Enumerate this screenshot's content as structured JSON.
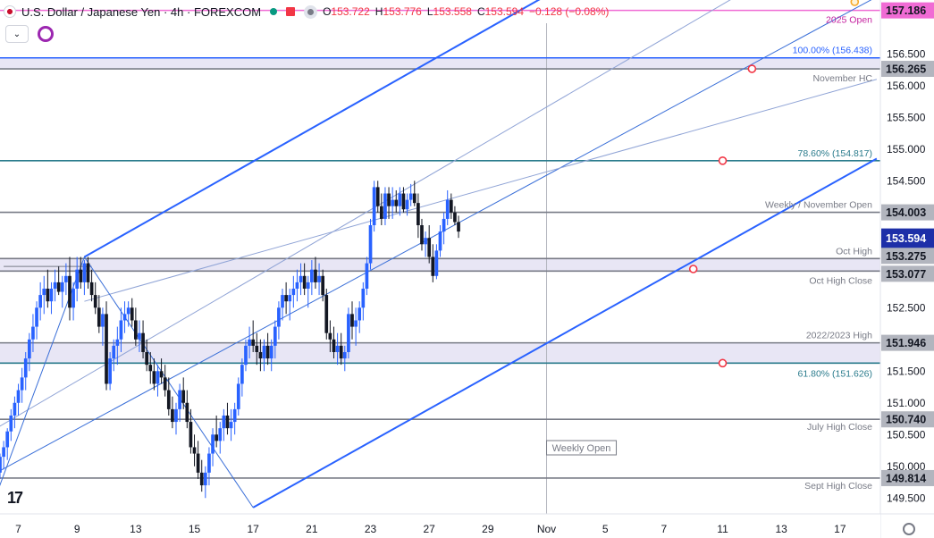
{
  "header": {
    "title": "U.S. Dollar / Japanese Yen · 4h · FOREXCOM",
    "ohlc": [
      {
        "k": "O",
        "v": "153.722"
      },
      {
        "k": "H",
        "v": "153.776"
      },
      {
        "k": "L",
        "v": "153.558"
      },
      {
        "k": "C",
        "v": "153.594"
      },
      {
        "k": "",
        "v": "−0.128 (−0.08%)"
      }
    ]
  },
  "colors": {
    "up": "#2962ff",
    "down": "#131722",
    "channel": "#2962ff",
    "channel_light": "#90a4d6",
    "zone": "#e8e6f5",
    "hline": "#787b86",
    "fib": "#2a7b8c",
    "pink": "#f06bd4",
    "marker": "#f23645",
    "label_bg": "#b2b5be",
    "orange": "#f7a928"
  },
  "chart_data": {
    "type": "candlestick",
    "y_axis": {
      "ticks": [
        "156.500",
        "156.000",
        "155.500",
        "155.000",
        "154.500",
        "154.000",
        "153.500",
        "153.000",
        "152.500",
        "152.000",
        "151.500",
        "151.000",
        "150.500",
        "150.000",
        "149.500"
      ],
      "tick_values": [
        156.5,
        156.0,
        155.5,
        155.0,
        154.5,
        154.0,
        153.5,
        153.0,
        152.5,
        152.0,
        151.5,
        151.0,
        150.5,
        150.0,
        149.5
      ],
      "range": [
        149.25,
        157.35
      ]
    },
    "x_axis": {
      "ticks": [
        "7",
        "9",
        "13",
        "15",
        "17",
        "21",
        "23",
        "27",
        "29",
        "Nov",
        "5",
        "7",
        "11",
        "13",
        "17"
      ],
      "tick_positions": [
        0,
        8,
        16,
        24,
        32,
        40,
        48,
        56,
        64,
        72,
        80,
        88,
        96,
        104,
        112
      ],
      "range_bars": [
        -2.5,
        117.5
      ]
    },
    "price_labels": [
      {
        "text": "157.186",
        "value": 157.186,
        "style": "pink"
      },
      {
        "text": "156.265",
        "value": 156.265,
        "style": "gray"
      },
      {
        "text": "154.003",
        "value": 154.003,
        "style": "gray"
      },
      {
        "text": "153.594",
        "value": 153.594,
        "style": "current"
      },
      {
        "text": "153.275",
        "value": 153.275,
        "style": "gray"
      },
      {
        "text": "153.077",
        "value": 153.077,
        "style": "gray"
      },
      {
        "text": "151.946",
        "value": 151.946,
        "style": "gray"
      },
      {
        "text": "150.740",
        "value": 150.74,
        "style": "gray"
      },
      {
        "text": "149.814",
        "value": 149.814,
        "style": "gray"
      }
    ],
    "levels": [
      {
        "value": 157.186,
        "label": "2025 Open",
        "color": "#f06bd4",
        "label_color": "#c41f9e"
      },
      {
        "value": 156.438,
        "label": "100.00% (156.438)",
        "color": "#2962ff",
        "label_color": "#2962ff"
      },
      {
        "value": 156.265,
        "label": "November HC",
        "color": "#787b86",
        "label_color": "#787b86"
      },
      {
        "value": 154.817,
        "label": "78.60% (154.817)",
        "color": "#2a7b8c",
        "label_color": "#2a7b8c"
      },
      {
        "value": 154.003,
        "label": "Weekly / November Open",
        "color": "#787b86",
        "label_color": "#787b86"
      },
      {
        "value": 153.275,
        "label": "Oct High",
        "color": "#787b86",
        "label_color": "#787b86"
      },
      {
        "value": 153.077,
        "label": "Oct High Close",
        "color": "#787b86",
        "label_color": "#787b86"
      },
      {
        "value": 151.946,
        "label": "2022/2023 High",
        "color": "#787b86",
        "label_color": "#787b86"
      },
      {
        "value": 151.626,
        "label": "61.80% (151.626)",
        "color": "#2a7b8c",
        "label_color": "#2a7b8c"
      },
      {
        "value": 150.74,
        "label": "July High Close",
        "color": "#787b86",
        "label_color": "#787b86"
      },
      {
        "value": 149.814,
        "label": "Sept High Close",
        "color": "#787b86",
        "label_color": "#787b86"
      }
    ],
    "zones": [
      {
        "from": 156.265,
        "to": 156.438
      },
      {
        "from": 153.077,
        "to": 153.275
      },
      {
        "from": 151.626,
        "to": 151.946
      }
    ],
    "annotation": "Weekly Open",
    "channel": {
      "lower": [
        [
          32,
          149.35
        ],
        [
          117,
          154.85
        ]
      ],
      "upper": [
        [
          9,
          153.3
        ],
        [
          90,
          158.6
        ]
      ],
      "mid": [
        [
          -3,
          149.9
        ],
        [
          117,
          157.4
        ]
      ],
      "quarter_upper": [
        [
          -3,
          150.6
        ],
        [
          117,
          158.7
        ]
      ],
      "quarter_lower": [
        [
          9,
          152.6
        ],
        [
          117,
          156.1
        ]
      ],
      "fork": [
        [
          -3,
          149.55
        ],
        [
          9,
          153.3
        ],
        [
          32,
          149.35
        ]
      ]
    },
    "fib_anchor_line": {
      "from": [
        -2,
        153.15
      ],
      "to": [
        10,
        153.15
      ]
    },
    "markers": [
      {
        "bar": 100,
        "value": 156.265
      },
      {
        "bar": 96,
        "value": 154.817
      },
      {
        "bar": 92,
        "value": 153.11
      },
      {
        "bar": 96,
        "value": 151.626
      },
      {
        "bar": 114,
        "value": 157.32
      }
    ],
    "candles": [
      [
        -2.5,
        149.9,
        150.2,
        149.8,
        150.15
      ],
      [
        -2,
        150.15,
        150.4,
        149.95,
        150.3
      ],
      [
        -1.5,
        150.3,
        150.6,
        150.1,
        150.55
      ],
      [
        -1,
        150.55,
        150.9,
        150.4,
        150.8
      ],
      [
        -0.5,
        150.8,
        151.1,
        150.6,
        151.0
      ],
      [
        0,
        151.0,
        151.3,
        150.8,
        151.2
      ],
      [
        0.5,
        151.2,
        151.55,
        151.0,
        151.4
      ],
      [
        1,
        151.4,
        151.8,
        151.2,
        151.7
      ],
      [
        1.5,
        151.7,
        152.1,
        151.5,
        152.0
      ],
      [
        2,
        152.0,
        152.4,
        151.8,
        152.2
      ],
      [
        2.5,
        152.2,
        152.6,
        152.0,
        152.5
      ],
      [
        3,
        152.5,
        152.9,
        152.3,
        152.7
      ],
      [
        3.5,
        152.7,
        153.0,
        152.4,
        152.8
      ],
      [
        4,
        152.8,
        153.1,
        152.5,
        152.6
      ],
      [
        4.5,
        152.6,
        152.9,
        152.4,
        152.8
      ],
      [
        5,
        152.8,
        153.1,
        152.6,
        152.9
      ],
      [
        5.5,
        152.9,
        153.15,
        152.7,
        152.75
      ],
      [
        6,
        152.75,
        153.0,
        152.5,
        152.9
      ],
      [
        6.5,
        152.9,
        153.2,
        152.7,
        153.0
      ],
      [
        7,
        153.0,
        153.3,
        152.3,
        152.5
      ],
      [
        7.5,
        152.5,
        152.9,
        152.3,
        152.8
      ],
      [
        8,
        152.8,
        153.3,
        152.6,
        153.1
      ],
      [
        8.5,
        153.1,
        153.3,
        152.8,
        152.9
      ],
      [
        9,
        152.9,
        153.25,
        152.7,
        153.2
      ],
      [
        9.5,
        153.2,
        153.3,
        152.8,
        152.9
      ],
      [
        10,
        152.9,
        153.1,
        152.6,
        152.7
      ],
      [
        10.5,
        152.7,
        152.9,
        152.4,
        152.5
      ],
      [
        11,
        152.5,
        152.7,
        152.1,
        152.2
      ],
      [
        11.5,
        152.2,
        152.5,
        151.9,
        152.4
      ],
      [
        12,
        152.4,
        152.6,
        151.2,
        151.3
      ],
      [
        12.5,
        151.3,
        151.8,
        151.2,
        151.7
      ],
      [
        13,
        151.7,
        152.0,
        151.5,
        151.9
      ],
      [
        13.5,
        151.9,
        152.2,
        151.6,
        152.0
      ],
      [
        14,
        152.0,
        152.5,
        151.8,
        152.3
      ],
      [
        14.5,
        152.3,
        152.6,
        152.1,
        152.4
      ],
      [
        15,
        152.4,
        152.6,
        152.2,
        152.5
      ],
      [
        15.5,
        152.5,
        152.65,
        152.2,
        152.3
      ],
      [
        16,
        152.3,
        152.5,
        151.9,
        152.0
      ],
      [
        16.5,
        152.0,
        152.3,
        151.8,
        152.1
      ],
      [
        17,
        152.1,
        152.3,
        151.7,
        151.8
      ],
      [
        17.5,
        151.8,
        152.0,
        151.5,
        151.6
      ],
      [
        18,
        151.6,
        151.8,
        151.3,
        151.5
      ],
      [
        18.5,
        151.5,
        151.7,
        151.2,
        151.3
      ],
      [
        19,
        151.3,
        151.6,
        151.1,
        151.5
      ],
      [
        19.5,
        151.5,
        151.7,
        151.3,
        151.4
      ],
      [
        20,
        151.4,
        151.6,
        151.1,
        151.2
      ],
      [
        20.5,
        151.2,
        151.4,
        150.8,
        150.9
      ],
      [
        21,
        150.9,
        151.1,
        150.6,
        150.7
      ],
      [
        21.5,
        150.7,
        151.0,
        150.5,
        150.9
      ],
      [
        22,
        150.9,
        151.3,
        150.7,
        151.2
      ],
      [
        22.5,
        151.2,
        151.4,
        150.9,
        151.0
      ],
      [
        23,
        151.0,
        151.2,
        150.6,
        150.7
      ],
      [
        23.5,
        150.7,
        150.9,
        150.2,
        150.3
      ],
      [
        24,
        150.3,
        150.5,
        150.0,
        150.2
      ],
      [
        24.5,
        150.2,
        150.4,
        149.8,
        149.9
      ],
      [
        25,
        149.9,
        150.1,
        149.6,
        149.7
      ],
      [
        25.5,
        149.7,
        150.0,
        149.5,
        149.9
      ],
      [
        26,
        149.9,
        150.3,
        149.7,
        150.2
      ],
      [
        26.5,
        150.2,
        150.6,
        150.0,
        150.5
      ],
      [
        27,
        150.5,
        150.8,
        150.3,
        150.4
      ],
      [
        27.5,
        150.4,
        150.7,
        150.2,
        150.6
      ],
      [
        28,
        150.6,
        150.9,
        150.4,
        150.8
      ],
      [
        28.5,
        150.8,
        151.0,
        150.5,
        150.6
      ],
      [
        29,
        150.6,
        150.9,
        150.4,
        150.7
      ],
      [
        29.5,
        150.7,
        151.0,
        150.5,
        150.9
      ],
      [
        30,
        150.9,
        151.4,
        150.8,
        151.3
      ],
      [
        30.5,
        151.3,
        151.7,
        151.1,
        151.6
      ],
      [
        31,
        151.6,
        152.0,
        151.5,
        151.9
      ],
      [
        31.5,
        151.9,
        152.2,
        151.7,
        152.0
      ],
      [
        32,
        152.0,
        152.3,
        151.8,
        151.9
      ],
      [
        32.5,
        151.9,
        152.1,
        151.6,
        151.8
      ],
      [
        33,
        151.8,
        152.0,
        151.5,
        151.7
      ],
      [
        33.5,
        151.7,
        152.0,
        151.5,
        151.9
      ],
      [
        34,
        151.9,
        152.1,
        151.6,
        151.7
      ],
      [
        34.5,
        151.7,
        152.0,
        151.5,
        151.9
      ],
      [
        35,
        151.9,
        152.3,
        151.7,
        152.2
      ],
      [
        35.5,
        152.2,
        152.6,
        152.0,
        152.5
      ],
      [
        36,
        152.5,
        152.8,
        152.3,
        152.7
      ],
      [
        36.5,
        152.7,
        152.9,
        152.4,
        152.6
      ],
      [
        37,
        152.6,
        152.8,
        152.3,
        152.7
      ],
      [
        37.5,
        152.7,
        153.0,
        152.5,
        152.8
      ],
      [
        38,
        152.8,
        153.1,
        152.6,
        152.9
      ],
      [
        38.5,
        152.9,
        153.2,
        152.7,
        153.0
      ],
      [
        39,
        153.0,
        153.2,
        152.7,
        152.8
      ],
      [
        39.5,
        152.8,
        153.0,
        152.5,
        152.9
      ],
      [
        40,
        152.9,
        153.25,
        152.7,
        153.1
      ],
      [
        40.5,
        153.1,
        153.3,
        152.8,
        152.9
      ],
      [
        41,
        152.9,
        153.2,
        152.7,
        153.0
      ],
      [
        41.5,
        153.0,
        153.1,
        152.6,
        152.7
      ],
      [
        42,
        152.7,
        152.8,
        152.0,
        152.1
      ],
      [
        42.5,
        152.1,
        152.3,
        151.8,
        152.0
      ],
      [
        43,
        152.0,
        152.2,
        151.7,
        151.8
      ],
      [
        43.5,
        151.8,
        152.1,
        151.6,
        151.9
      ],
      [
        44,
        151.9,
        152.1,
        151.6,
        151.7
      ],
      [
        44.5,
        151.7,
        151.9,
        151.5,
        151.8
      ],
      [
        45,
        151.8,
        152.5,
        151.7,
        152.4
      ],
      [
        45.5,
        152.4,
        152.6,
        152.0,
        152.2
      ],
      [
        46,
        152.2,
        152.5,
        151.9,
        152.3
      ],
      [
        46.5,
        152.3,
        152.6,
        152.1,
        152.5
      ],
      [
        47,
        152.5,
        152.9,
        152.3,
        152.8
      ],
      [
        47.5,
        152.8,
        153.3,
        152.7,
        153.2
      ],
      [
        48,
        153.2,
        153.9,
        153.1,
        153.8
      ],
      [
        48.5,
        153.8,
        154.5,
        153.7,
        154.4
      ],
      [
        49,
        154.4,
        154.5,
        154.0,
        154.1
      ],
      [
        49.5,
        154.1,
        154.3,
        153.8,
        153.9
      ],
      [
        50,
        153.9,
        154.4,
        153.8,
        154.3
      ],
      [
        50.5,
        154.3,
        154.4,
        153.9,
        154.1
      ],
      [
        51,
        154.1,
        154.4,
        153.9,
        154.2
      ],
      [
        51.5,
        154.2,
        154.35,
        154.0,
        154.1
      ],
      [
        52,
        154.1,
        154.4,
        153.95,
        154.3
      ],
      [
        52.5,
        154.3,
        154.4,
        154.0,
        154.05
      ],
      [
        53,
        154.05,
        154.3,
        153.95,
        154.2
      ],
      [
        53.5,
        154.2,
        154.45,
        154.1,
        154.3
      ],
      [
        54,
        154.3,
        154.5,
        154.1,
        154.15
      ],
      [
        54.5,
        154.15,
        154.3,
        153.6,
        153.8
      ],
      [
        55,
        153.8,
        153.9,
        153.4,
        153.5
      ],
      [
        55.5,
        153.5,
        153.7,
        153.3,
        153.6
      ],
      [
        56,
        153.6,
        153.8,
        153.2,
        153.3
      ],
      [
        56.5,
        153.3,
        153.5,
        152.9,
        153.0
      ],
      [
        57,
        153.0,
        153.5,
        152.95,
        153.4
      ],
      [
        57.5,
        153.4,
        153.8,
        153.3,
        153.7
      ],
      [
        58,
        153.7,
        154.0,
        153.5,
        153.9
      ],
      [
        58.5,
        153.9,
        154.35,
        153.8,
        154.2
      ],
      [
        59,
        154.2,
        154.3,
        153.9,
        154.0
      ],
      [
        59.5,
        154.0,
        154.1,
        153.8,
        153.85
      ],
      [
        60,
        153.85,
        153.95,
        153.6,
        153.7
      ]
    ]
  }
}
